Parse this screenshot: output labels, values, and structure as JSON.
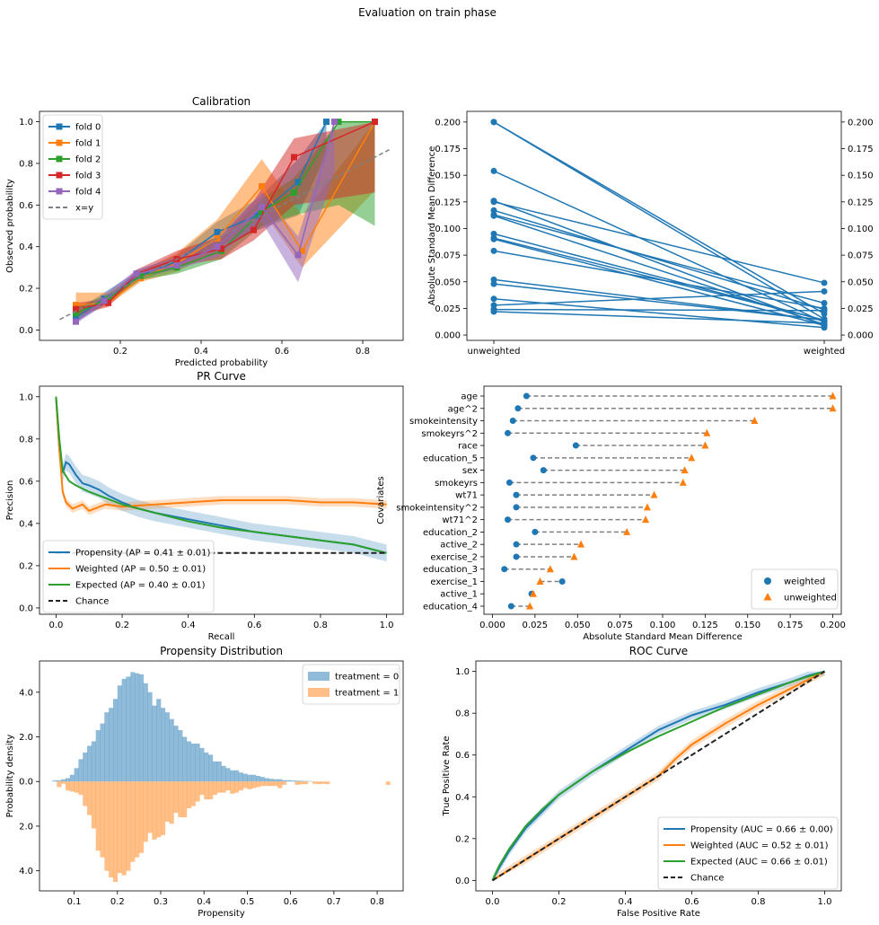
{
  "figure": {
    "suptitle": "Evaluation on train phase"
  },
  "chart_data": [
    {
      "id": "calibration",
      "type": "line",
      "title": "Calibration",
      "xlabel": "Predicted probability",
      "ylabel": "Observed probability",
      "xlim": [
        0.0,
        0.9
      ],
      "ylim": [
        -0.05,
        1.05
      ],
      "xticks": [
        0.2,
        0.4,
        0.6,
        0.8
      ],
      "xtick_labels": [
        "0.2",
        "0.4",
        "0.6",
        "0.8"
      ],
      "yticks": [
        0.0,
        0.2,
        0.4,
        0.6,
        0.8,
        1.0
      ],
      "ytick_labels": [
        "0.0",
        "0.2",
        "0.4",
        "0.6",
        "0.8",
        "1.0"
      ],
      "legend_position": "upper-left",
      "series": [
        {
          "name": "fold 0",
          "color": "#1f77b4",
          "x": [
            0.09,
            0.16,
            0.25,
            0.34,
            0.44,
            0.54,
            0.64,
            0.71
          ],
          "y": [
            0.06,
            0.15,
            0.26,
            0.33,
            0.47,
            0.55,
            0.71,
            1.0
          ],
          "lo": [
            0.04,
            0.12,
            0.24,
            0.3,
            0.4,
            0.48,
            0.55,
            0.85
          ],
          "hi": [
            0.09,
            0.18,
            0.29,
            0.36,
            0.52,
            0.63,
            0.82,
            1.0
          ]
        },
        {
          "name": "fold 1",
          "color": "#ff7f0e",
          "x": [
            0.09,
            0.17,
            0.25,
            0.34,
            0.44,
            0.55,
            0.65,
            0.83
          ],
          "y": [
            0.12,
            0.13,
            0.25,
            0.32,
            0.44,
            0.69,
            0.38,
            1.0
          ],
          "lo": [
            0.06,
            0.12,
            0.23,
            0.28,
            0.38,
            0.58,
            0.3,
            0.67
          ],
          "hi": [
            0.18,
            0.18,
            0.28,
            0.37,
            0.53,
            0.82,
            0.55,
            1.0
          ]
        },
        {
          "name": "fold 2",
          "color": "#2ca02c",
          "x": [
            0.09,
            0.17,
            0.25,
            0.34,
            0.45,
            0.55,
            0.63,
            0.74,
            0.83
          ],
          "y": [
            0.08,
            0.15,
            0.26,
            0.3,
            0.38,
            0.57,
            0.66,
            1.0,
            1.0
          ],
          "lo": [
            0.05,
            0.13,
            0.24,
            0.27,
            0.34,
            0.5,
            0.55,
            0.6,
            0.5
          ],
          "hi": [
            0.11,
            0.17,
            0.28,
            0.33,
            0.44,
            0.63,
            0.73,
            1.0,
            1.0
          ]
        },
        {
          "name": "fold 3",
          "color": "#d62728",
          "x": [
            0.09,
            0.17,
            0.24,
            0.34,
            0.45,
            0.53,
            0.63,
            0.83
          ],
          "y": [
            0.1,
            0.13,
            0.27,
            0.34,
            0.39,
            0.48,
            0.83,
            1.0
          ],
          "lo": [
            0.07,
            0.11,
            0.25,
            0.31,
            0.34,
            0.43,
            0.6,
            0.66
          ],
          "hi": [
            0.13,
            0.15,
            0.29,
            0.38,
            0.45,
            0.62,
            0.92,
            1.0
          ]
        },
        {
          "name": "fold 4",
          "color": "#9467bd",
          "x": [
            0.09,
            0.16,
            0.24,
            0.34,
            0.44,
            0.55,
            0.64,
            0.73
          ],
          "y": [
            0.04,
            0.14,
            0.27,
            0.31,
            0.4,
            0.59,
            0.36,
            1.0
          ],
          "lo": [
            0.03,
            0.12,
            0.25,
            0.29,
            0.35,
            0.52,
            0.23,
            0.76
          ],
          "hi": [
            0.06,
            0.17,
            0.29,
            0.35,
            0.44,
            0.66,
            0.45,
            1.0
          ]
        },
        {
          "name": "x=y",
          "color": "#808080",
          "x": [
            0.05,
            0.87
          ],
          "y": [
            0.05,
            0.87
          ],
          "dashed": true
        }
      ]
    },
    {
      "id": "asmd-lines",
      "type": "line",
      "title": "",
      "xlabel": "",
      "ylabel": "Absolute Standard Mean Difference",
      "categories": [
        "unweighted",
        "weighted"
      ],
      "ylim": [
        -0.005,
        0.21
      ],
      "yticks": [
        0.0,
        0.025,
        0.05,
        0.075,
        0.1,
        0.125,
        0.15,
        0.175,
        0.2
      ],
      "ytick_labels": [
        "0.000",
        "0.025",
        "0.050",
        "0.075",
        "0.100",
        "0.125",
        "0.150",
        "0.175",
        "0.200"
      ],
      "color": "#1f77b4",
      "pairs": [
        [
          0.2,
          0.02
        ],
        [
          0.2,
          0.015
        ],
        [
          0.154,
          0.012
        ],
        [
          0.126,
          0.009
        ],
        [
          0.125,
          0.049
        ],
        [
          0.117,
          0.024
        ],
        [
          0.113,
          0.03
        ],
        [
          0.112,
          0.01
        ],
        [
          0.095,
          0.014
        ],
        [
          0.091,
          0.014
        ],
        [
          0.09,
          0.009
        ],
        [
          0.079,
          0.025
        ],
        [
          0.052,
          0.014
        ],
        [
          0.048,
          0.014
        ],
        [
          0.034,
          0.007
        ],
        [
          0.028,
          0.041
        ],
        [
          0.024,
          0.023
        ],
        [
          0.022,
          0.011
        ]
      ]
    },
    {
      "id": "pr-curve",
      "type": "line",
      "title": "PR Curve",
      "xlabel": "Recall",
      "ylabel": "Precision",
      "xlim": [
        -0.05,
        1.05
      ],
      "ylim": [
        -0.03,
        1.05
      ],
      "xticks": [
        0.0,
        0.2,
        0.4,
        0.6,
        0.8,
        1.0
      ],
      "xtick_labels": [
        "0.0",
        "0.2",
        "0.4",
        "0.6",
        "0.8",
        "1.0"
      ],
      "yticks": [
        0.0,
        0.2,
        0.4,
        0.6,
        0.8,
        1.0
      ],
      "ytick_labels": [
        "0.0",
        "0.2",
        "0.4",
        "0.6",
        "0.8",
        "1.0"
      ],
      "legend_position": "lower-left",
      "series": [
        {
          "name": "Propensity (AP = 0.41 ± 0.01)",
          "color": "#1f77b4",
          "x": [
            0.0,
            0.01,
            0.02,
            0.03,
            0.04,
            0.06,
            0.08,
            0.1,
            0.13,
            0.16,
            0.2,
            0.25,
            0.3,
            0.4,
            0.5,
            0.6,
            0.7,
            0.8,
            0.9,
            0.95,
            1.0
          ],
          "y": [
            1.0,
            0.75,
            0.64,
            0.69,
            0.68,
            0.63,
            0.59,
            0.58,
            0.56,
            0.53,
            0.5,
            0.47,
            0.45,
            0.42,
            0.39,
            0.36,
            0.34,
            0.32,
            0.3,
            0.28,
            0.26
          ],
          "band": 0.04
        },
        {
          "name": "Weighted (AP = 0.50 ± 0.01)",
          "color": "#ff7f0e",
          "x": [
            0.0,
            0.01,
            0.02,
            0.03,
            0.05,
            0.08,
            0.1,
            0.15,
            0.2,
            0.3,
            0.4,
            0.5,
            0.6,
            0.7,
            0.8,
            0.9,
            1.0
          ],
          "y": [
            1.0,
            0.75,
            0.55,
            0.5,
            0.47,
            0.49,
            0.46,
            0.49,
            0.48,
            0.49,
            0.5,
            0.51,
            0.51,
            0.51,
            0.5,
            0.5,
            0.49
          ],
          "band": 0.02
        },
        {
          "name": "Expected (AP = 0.40 ± 0.01)",
          "color": "#2ca02c",
          "x": [
            0.0,
            0.01,
            0.02,
            0.04,
            0.06,
            0.1,
            0.15,
            0.2,
            0.3,
            0.4,
            0.5,
            0.6,
            0.7,
            0.8,
            0.9,
            0.95,
            1.0
          ],
          "y": [
            1.0,
            0.8,
            0.65,
            0.6,
            0.58,
            0.55,
            0.52,
            0.49,
            0.45,
            0.41,
            0.38,
            0.36,
            0.34,
            0.32,
            0.3,
            0.28,
            0.26
          ],
          "band": 0.0
        },
        {
          "name": "Chance",
          "color": "#222222",
          "x": [
            0.0,
            1.0
          ],
          "y": [
            0.26,
            0.26
          ],
          "dashed": true
        }
      ]
    },
    {
      "id": "covariate-balance",
      "type": "scatter",
      "title": "",
      "xlabel": "Absolute Standard Mean Difference",
      "ylabel": "Covariates",
      "xlim": [
        -0.005,
        0.205
      ],
      "xticks": [
        0.0,
        0.025,
        0.05,
        0.075,
        0.1,
        0.125,
        0.15,
        0.175,
        0.2
      ],
      "xtick_labels": [
        "0.000",
        "0.025",
        "0.050",
        "0.075",
        "0.100",
        "0.125",
        "0.150",
        "0.175",
        "0.200"
      ],
      "legend_position": "lower-right",
      "legend": [
        "weighted",
        "unweighted"
      ],
      "colors": {
        "weighted": "#1f77b4",
        "unweighted": "#ff7f0e"
      },
      "categories": [
        "age",
        "age^2",
        "smokeintensity",
        "smokeyrs^2",
        "race",
        "education_5",
        "sex",
        "smokeyrs",
        "wt71",
        "smokeintensity^2",
        "wt71^2",
        "education_2",
        "active_2",
        "exercise_2",
        "education_3",
        "exercise_1",
        "active_1",
        "education_4"
      ],
      "weighted": [
        0.02,
        0.015,
        0.012,
        0.009,
        0.049,
        0.024,
        0.03,
        0.01,
        0.014,
        0.014,
        0.009,
        0.025,
        0.014,
        0.014,
        0.007,
        0.041,
        0.023,
        0.011
      ],
      "unweighted": [
        0.2,
        0.2,
        0.154,
        0.126,
        0.125,
        0.117,
        0.113,
        0.112,
        0.095,
        0.091,
        0.09,
        0.079,
        0.052,
        0.048,
        0.034,
        0.028,
        0.024,
        0.022
      ]
    },
    {
      "id": "propensity-distribution",
      "type": "bar",
      "title": "Propensity Distribution",
      "xlabel": "Propensity",
      "ylabel": "Probability density",
      "xlim": [
        0.02,
        0.86
      ],
      "ylim": [
        -4.9,
        5.4
      ],
      "xticks": [
        0.1,
        0.2,
        0.3,
        0.4,
        0.5,
        0.6,
        0.7,
        0.8
      ],
      "xtick_labels": [
        "0.1",
        "0.2",
        "0.3",
        "0.4",
        "0.5",
        "0.6",
        "0.7",
        "0.8"
      ],
      "yticks": [
        4.0,
        2.0,
        0.0,
        -2.0,
        -4.0
      ],
      "ytick_labels": [
        "4.0",
        "2.0",
        "0.0",
        "2.0",
        "4.0"
      ],
      "legend_position": "upper-right",
      "bin_width": 0.01,
      "series": [
        {
          "name": "treatment = 0",
          "color": "#1f77b4",
          "start": 0.05,
          "values": [
            0.05,
            0.05,
            0.1,
            0.15,
            0.3,
            0.6,
            1.0,
            1.3,
            1.6,
            1.8,
            2.3,
            2.6,
            3.1,
            3.3,
            3.7,
            4.3,
            4.6,
            4.7,
            4.9,
            4.85,
            4.8,
            4.4,
            4.0,
            3.4,
            3.7,
            3.3,
            3.1,
            2.8,
            2.5,
            2.3,
            2.0,
            1.8,
            1.7,
            1.7,
            1.5,
            1.3,
            1.2,
            0.9,
            0.9,
            0.7,
            0.6,
            0.5,
            0.5,
            0.4,
            0.35,
            0.3,
            0.3,
            0.25,
            0.2,
            0.15,
            0.12,
            0.1,
            0.1,
            0.06,
            0.06,
            0.05,
            0.04,
            0.03,
            0.02,
            0.02
          ]
        },
        {
          "name": "treatment = 1",
          "color": "#ff7f0e",
          "start": 0.06,
          "values": [
            0.25,
            0.1,
            0.4,
            0.45,
            0.5,
            0.6,
            1.1,
            1.5,
            2.1,
            3.1,
            3.4,
            4.0,
            4.3,
            4.5,
            4.1,
            4.2,
            4.0,
            3.6,
            3.4,
            3.2,
            2.7,
            2.3,
            2.6,
            2.5,
            2.4,
            1.8,
            1.9,
            1.4,
            1.6,
            1.6,
            1.2,
            1.1,
            0.9,
            0.6,
            0.8,
            0.8,
            0.6,
            0.5,
            0.5,
            0.4,
            0.55,
            0.5,
            0.4,
            0.3,
            0.35,
            0.3,
            0.25,
            0.2,
            0.2,
            0.2,
            0.2,
            0.3,
            0.15,
            0.0,
            0.0,
            0.15,
            0.12,
            0.12,
            0.0,
            0.1,
            0.12,
            0.1,
            0.12,
            0.0,
            0.0,
            0.0,
            0.0,
            0.0,
            0.0,
            0.0,
            0.0,
            0.0,
            0.0,
            0.0,
            0.0,
            0.0,
            0.15
          ]
        }
      ]
    },
    {
      "id": "roc-curve",
      "type": "line",
      "title": "ROC Curve",
      "xlabel": "False Positive Rate",
      "ylabel": "True Positive Rate",
      "xlim": [
        -0.05,
        1.05
      ],
      "ylim": [
        -0.05,
        1.05
      ],
      "xticks": [
        0.0,
        0.2,
        0.4,
        0.6,
        0.8,
        1.0
      ],
      "xtick_labels": [
        "0.0",
        "0.2",
        "0.4",
        "0.6",
        "0.8",
        "1.0"
      ],
      "yticks": [
        0.0,
        0.2,
        0.4,
        0.6,
        0.8,
        1.0
      ],
      "ytick_labels": [
        "0.0",
        "0.2",
        "0.4",
        "0.6",
        "0.8",
        "1.0"
      ],
      "legend_position": "lower-right",
      "series": [
        {
          "name": "Propensity (AUC = 0.66 ± 0.00)",
          "color": "#1f77b4",
          "x": [
            0.0,
            0.02,
            0.05,
            0.1,
            0.15,
            0.2,
            0.3,
            0.4,
            0.5,
            0.6,
            0.7,
            0.8,
            0.9,
            0.95,
            1.0
          ],
          "y": [
            0.0,
            0.06,
            0.14,
            0.25,
            0.33,
            0.41,
            0.52,
            0.62,
            0.72,
            0.79,
            0.84,
            0.9,
            0.95,
            0.98,
            1.0
          ],
          "band": 0.02
        },
        {
          "name": "Weighted (AUC = 0.52 ± 0.01)",
          "color": "#ff7f0e",
          "x": [
            0.0,
            0.1,
            0.2,
            0.3,
            0.4,
            0.5,
            0.55,
            0.6,
            0.7,
            0.8,
            0.9,
            1.0
          ],
          "y": [
            0.0,
            0.1,
            0.2,
            0.3,
            0.4,
            0.5,
            0.58,
            0.65,
            0.75,
            0.84,
            0.92,
            1.0
          ],
          "band": 0.02
        },
        {
          "name": "Expected (AUC = 0.66 ± 0.01)",
          "color": "#2ca02c",
          "x": [
            0.0,
            0.02,
            0.05,
            0.1,
            0.15,
            0.2,
            0.3,
            0.4,
            0.5,
            0.6,
            0.7,
            0.8,
            0.9,
            1.0
          ],
          "y": [
            0.0,
            0.07,
            0.15,
            0.26,
            0.34,
            0.41,
            0.52,
            0.61,
            0.69,
            0.76,
            0.83,
            0.89,
            0.95,
            1.0
          ],
          "band": 0.0
        },
        {
          "name": "Chance",
          "color": "#222222",
          "x": [
            0.0,
            1.0
          ],
          "y": [
            0.0,
            1.0
          ],
          "dashed": true
        }
      ]
    }
  ]
}
